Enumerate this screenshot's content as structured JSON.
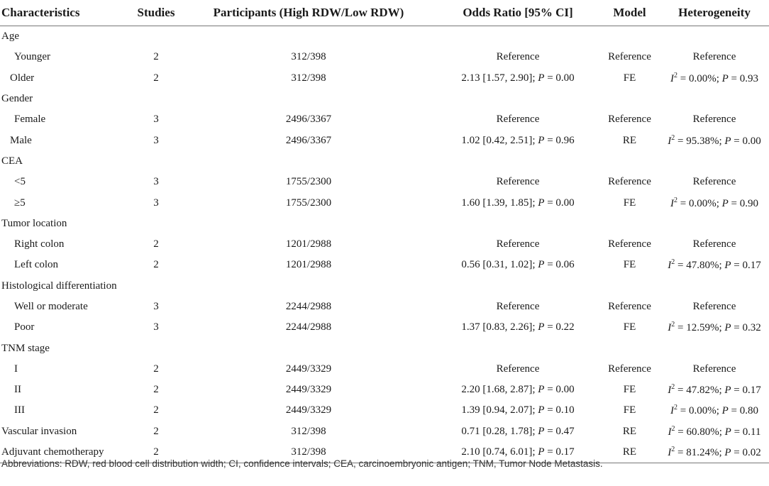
{
  "table": {
    "headers": [
      "Characteristics",
      "Studies",
      "Participants (High RDW/Low RDW)",
      "Odds Ratio [95% CI]",
      "Model",
      "Heterogeneity"
    ],
    "rows": [
      {
        "kind": "group",
        "cells": [
          "Age",
          "",
          "",
          "",
          "",
          ""
        ]
      },
      {
        "kind": "sub",
        "cells": [
          "Younger",
          "2",
          "312/398",
          "Reference",
          "Reference",
          "Reference"
        ]
      },
      {
        "kind": "sub2",
        "cells": [
          "Older",
          "2",
          "312/398",
          "2.13 [1.57, 2.90]; P = 0.00",
          "FE",
          "I2 = 0.00%; P = 0.93"
        ]
      },
      {
        "kind": "group",
        "cells": [
          "Gender",
          "",
          "",
          "",
          "",
          ""
        ]
      },
      {
        "kind": "sub",
        "cells": [
          "Female",
          "3",
          "2496/3367",
          "Reference",
          "Reference",
          "Reference"
        ]
      },
      {
        "kind": "sub2",
        "cells": [
          "Male",
          "3",
          "2496/3367",
          "1.02 [0.42, 2.51]; P = 0.96",
          "RE",
          "I2 = 95.38%; P = 0.00"
        ]
      },
      {
        "kind": "group",
        "cells": [
          "CEA",
          "",
          "",
          "",
          "",
          ""
        ]
      },
      {
        "kind": "sub",
        "cells": [
          "<5",
          "3",
          "1755/2300",
          "Reference",
          "Reference",
          "Reference"
        ]
      },
      {
        "kind": "sub",
        "cells": [
          "≥5",
          "3",
          "1755/2300",
          "1.60 [1.39, 1.85]; P = 0.00",
          "FE",
          "I2 = 0.00%; P = 0.90"
        ]
      },
      {
        "kind": "group",
        "cells": [
          "Tumor location",
          "",
          "",
          "",
          "",
          ""
        ]
      },
      {
        "kind": "sub",
        "cells": [
          "Right colon",
          "2",
          "1201/2988",
          "Reference",
          "Reference",
          "Reference"
        ]
      },
      {
        "kind": "sub",
        "cells": [
          "Left colon",
          "2",
          "1201/2988",
          "0.56 [0.31, 1.02]; P = 0.06",
          "FE",
          "I2 = 47.80%; P = 0.17"
        ]
      },
      {
        "kind": "group",
        "cells": [
          "Histological differentiation",
          "",
          "",
          "",
          "",
          ""
        ]
      },
      {
        "kind": "sub",
        "cells": [
          "Well or moderate",
          "3",
          "2244/2988",
          "Reference",
          "Reference",
          "Reference"
        ]
      },
      {
        "kind": "sub",
        "cells": [
          "Poor",
          "3",
          "2244/2988",
          "1.37 [0.83, 2.26]; P = 0.22",
          "FE",
          "I2 = 12.59%; P = 0.32"
        ]
      },
      {
        "kind": "group",
        "cells": [
          "TNM stage",
          "",
          "",
          "",
          "",
          ""
        ]
      },
      {
        "kind": "sub",
        "cells": [
          "I",
          "2",
          "2449/3329",
          "Reference",
          "Reference",
          "Reference"
        ]
      },
      {
        "kind": "sub",
        "cells": [
          "II",
          "2",
          "2449/3329",
          "2.20 [1.68, 2.87]; P = 0.00",
          "FE",
          "I2 = 47.82%; P = 0.17"
        ]
      },
      {
        "kind": "sub",
        "cells": [
          "III",
          "2",
          "2449/3329",
          "1.39 [0.94, 2.07]; P = 0.10",
          "FE",
          "I2 = 0.00%; P = 0.80"
        ]
      },
      {
        "kind": "group",
        "cells": [
          "Vascular invasion",
          "2",
          "312/398",
          "0.71 [0.28, 1.78]; P = 0.47",
          "RE",
          "I2 = 60.80%; P = 0.11"
        ]
      },
      {
        "kind": "group",
        "cells": [
          "Adjuvant chemotherapy",
          "2",
          "312/398",
          "2.10 [0.74, 6.01]; P = 0.17",
          "RE",
          "I2 = 81.24%; P = 0.02"
        ]
      }
    ]
  },
  "footnote": "Abbreviations: RDW, red blood cell distribution width; CI, confidence intervals; CEA, carcinoembryonic antigen; TNM, Tumor Node Metastasis."
}
